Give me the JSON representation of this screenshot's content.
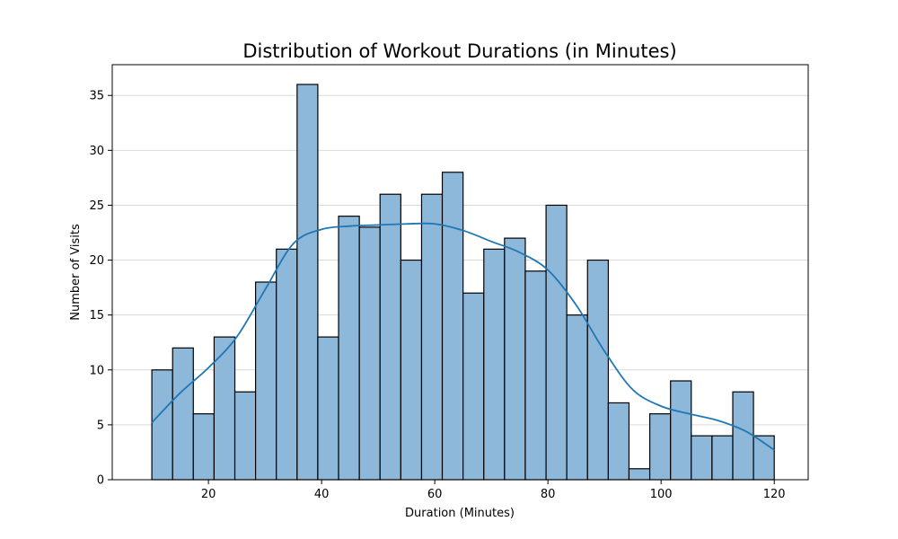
{
  "chart_data": {
    "type": "bar",
    "subtype": "histogram-with-kde",
    "title": "Distribution of Workout Durations (in Minutes)",
    "xlabel": "Duration (Minutes)",
    "ylabel": "Number of Visits",
    "xlim": [
      3,
      126
    ],
    "ylim": [
      0,
      37.8
    ],
    "xticks": [
      20,
      40,
      60,
      80,
      100,
      120
    ],
    "yticks": [
      0,
      5,
      10,
      15,
      20,
      25,
      30,
      35
    ],
    "grid": "y",
    "bar_color": "#8db8da",
    "bar_edge_color": "#000000",
    "line_color": "#1f77b4",
    "bins": [
      {
        "start": 10.0,
        "end": 13.67,
        "count": 10
      },
      {
        "start": 13.67,
        "end": 17.33,
        "count": 12
      },
      {
        "start": 17.33,
        "end": 21.0,
        "count": 6
      },
      {
        "start": 21.0,
        "end": 24.67,
        "count": 13
      },
      {
        "start": 24.67,
        "end": 28.33,
        "count": 8
      },
      {
        "start": 28.33,
        "end": 32.0,
        "count": 18
      },
      {
        "start": 32.0,
        "end": 35.67,
        "count": 21
      },
      {
        "start": 35.67,
        "end": 39.33,
        "count": 36
      },
      {
        "start": 39.33,
        "end": 43.0,
        "count": 13
      },
      {
        "start": 43.0,
        "end": 46.67,
        "count": 24
      },
      {
        "start": 46.67,
        "end": 50.33,
        "count": 23
      },
      {
        "start": 50.33,
        "end": 54.0,
        "count": 26
      },
      {
        "start": 54.0,
        "end": 57.67,
        "count": 20
      },
      {
        "start": 57.67,
        "end": 61.33,
        "count": 26
      },
      {
        "start": 61.33,
        "end": 65.0,
        "count": 28
      },
      {
        "start": 65.0,
        "end": 68.67,
        "count": 17
      },
      {
        "start": 68.67,
        "end": 72.33,
        "count": 21
      },
      {
        "start": 72.33,
        "end": 76.0,
        "count": 22
      },
      {
        "start": 76.0,
        "end": 79.67,
        "count": 19
      },
      {
        "start": 79.67,
        "end": 83.33,
        "count": 25
      },
      {
        "start": 83.33,
        "end": 87.0,
        "count": 15
      },
      {
        "start": 87.0,
        "end": 90.67,
        "count": 20
      },
      {
        "start": 90.67,
        "end": 94.33,
        "count": 7
      },
      {
        "start": 94.33,
        "end": 98.0,
        "count": 1
      },
      {
        "start": 98.0,
        "end": 101.67,
        "count": 6
      },
      {
        "start": 101.67,
        "end": 105.33,
        "count": 9
      },
      {
        "start": 105.33,
        "end": 109.0,
        "count": 4
      },
      {
        "start": 109.0,
        "end": 112.67,
        "count": 4
      },
      {
        "start": 112.67,
        "end": 116.33,
        "count": 8
      },
      {
        "start": 116.33,
        "end": 120.0,
        "count": 4
      }
    ],
    "kde": {
      "x": [
        10,
        15,
        20,
        25,
        30,
        35,
        40,
        45,
        50,
        55,
        60,
        65,
        70,
        75,
        80,
        85,
        90,
        95,
        100,
        105,
        110,
        115,
        120
      ],
      "y": [
        5.2,
        7.9,
        10.2,
        13.0,
        17.3,
        21.5,
        22.8,
        23.1,
        23.2,
        23.3,
        23.3,
        22.7,
        21.7,
        20.7,
        19.1,
        15.9,
        11.7,
        8.2,
        6.7,
        6.0,
        5.4,
        4.4,
        2.7
      ]
    }
  }
}
